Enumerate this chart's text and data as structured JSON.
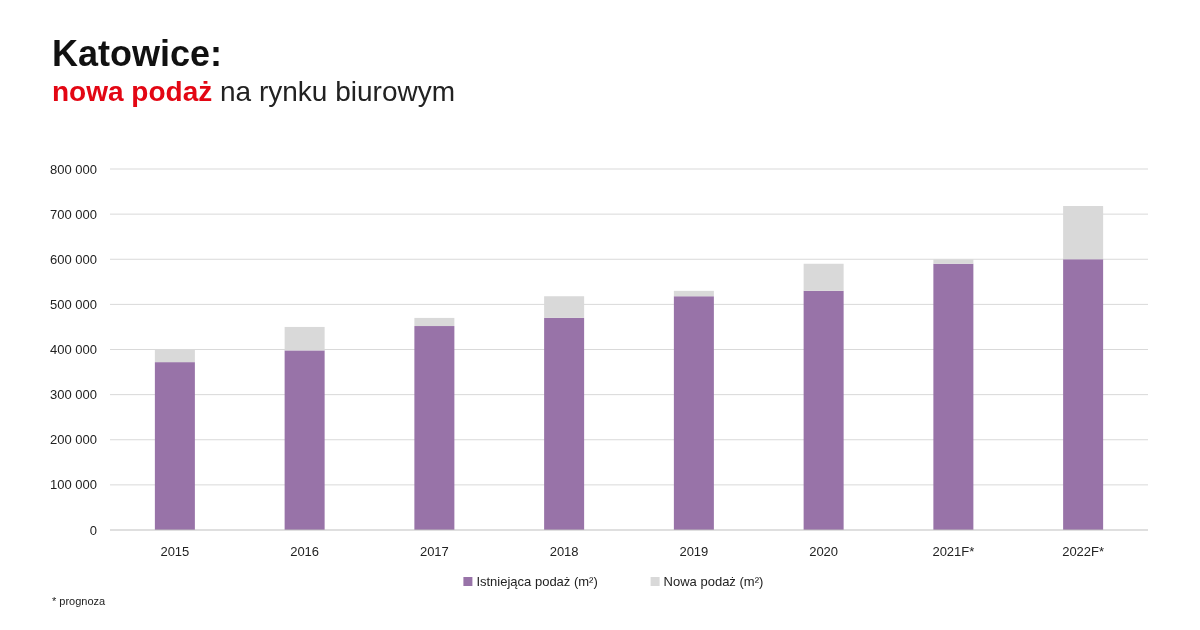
{
  "chart_data": {
    "type": "bar",
    "title": "Katowice:",
    "subtitle": "nowa podaż na rynku biurowym",
    "stacked": true,
    "categories": [
      "2015",
      "2016",
      "2017",
      "2018",
      "2019",
      "2020",
      "2021F*",
      "2022F*"
    ],
    "series": [
      {
        "name": "Istniejąca podaż (m²)",
        "color": "#9873a8",
        "values": [
          372000,
          398000,
          452000,
          470000,
          518000,
          530000,
          590000,
          600000
        ]
      },
      {
        "name": "Nowa podaż (m²)",
        "color": "#d9d9d9",
        "values": [
          28000,
          52000,
          18000,
          48000,
          12000,
          60000,
          10000,
          118000
        ]
      }
    ],
    "ylim": [
      0,
      800000
    ],
    "yticks": [
      0,
      {
        "value": 100000,
        "label": "100 000"
      },
      {
        "value": 200000,
        "label": "200 000"
      },
      {
        "value": 300000,
        "label": "300 000"
      },
      {
        "value": 400000,
        "label": "400 000"
      },
      {
        "value": 500000,
        "label": "500 000"
      },
      {
        "value": 600000,
        "label": "600 000"
      },
      {
        "value": 700000,
        "label": "700 000"
      },
      {
        "value": 800000,
        "label": "800 000"
      }
    ],
    "grid": "y",
    "legend": "bottom",
    "annotations": [
      "* prognoza"
    ]
  }
}
